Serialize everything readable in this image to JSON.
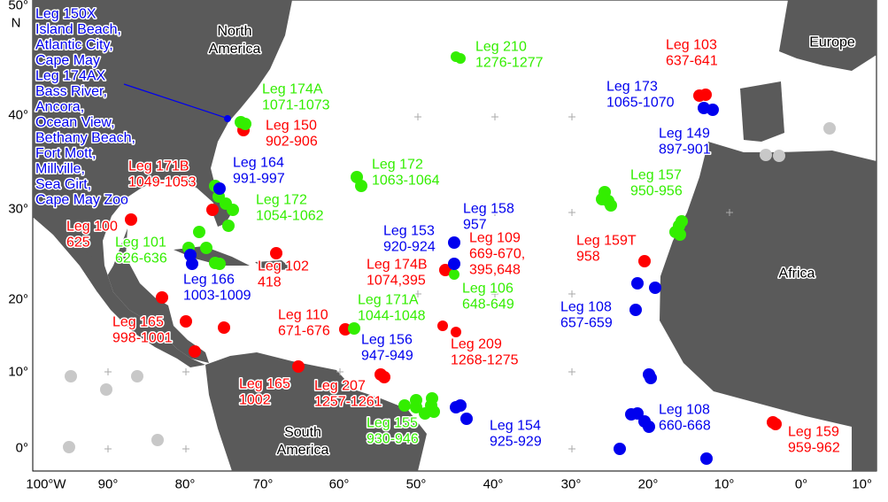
{
  "regions": [
    "North America",
    "Europe",
    "Africa",
    "South America"
  ],
  "axes": {
    "x_labels": [
      "100°W",
      "90°",
      "80°",
      "70°",
      "60°",
      "50°",
      "40°",
      "30°",
      "20°",
      "10°",
      "0°",
      "10°"
    ],
    "y_labels": [
      "50°",
      "40°",
      "30°",
      "20°",
      "10°",
      "0°"
    ],
    "y_unit": "N"
  },
  "legs": [
    {
      "color": "#0000ee",
      "lines": [
        "Leg 150X",
        "Island Beach,",
        "Atlantic City,",
        "Cape May",
        "Leg 174AX",
        "Bass River,",
        "Ancora,",
        "Ocean View,",
        "Bethany Beach,",
        "Fort Mott,",
        "Millville,",
        "Sea Girt,",
        "Cape May Zoo"
      ]
    },
    {
      "color": "#33ee00",
      "lines": [
        "Leg 210",
        "1276-1277"
      ]
    },
    {
      "color": "#ff0000",
      "lines": [
        "Leg 103",
        "637-641"
      ]
    },
    {
      "color": "#33ee00",
      "lines": [
        "Leg 174A",
        "1071-1073"
      ]
    },
    {
      "color": "#0000ee",
      "lines": [
        "Leg 173",
        "1065-1070"
      ]
    },
    {
      "color": "#ff0000",
      "lines": [
        "Leg 150",
        "902-906"
      ]
    },
    {
      "color": "#0000ee",
      "lines": [
        "Leg 149",
        "897-901"
      ]
    },
    {
      "color": "#ff0000",
      "lines": [
        "Leg 171B",
        "1049-1053"
      ]
    },
    {
      "color": "#0000ee",
      "lines": [
        "Leg 164",
        "991-997"
      ]
    },
    {
      "color": "#33ee00",
      "lines": [
        "Leg 172",
        "1063-1064"
      ]
    },
    {
      "color": "#33ee00",
      "lines": [
        "Leg 157",
        "950-956"
      ]
    },
    {
      "color": "#33ee00",
      "lines": [
        "Leg 172",
        "1054-1062"
      ]
    },
    {
      "color": "#0000ee",
      "lines": [
        "Leg 158",
        "957"
      ]
    },
    {
      "color": "#ff0000",
      "lines": [
        "Leg 100",
        "625"
      ]
    },
    {
      "color": "#0000ee",
      "lines": [
        "Leg 153",
        "920-924"
      ]
    },
    {
      "color": "#ff0000",
      "lines": [
        "Leg 109",
        "669-670,",
        "395,648"
      ]
    },
    {
      "color": "#ff0000",
      "lines": [
        "Leg 159T",
        "958"
      ]
    },
    {
      "color": "#33ee00",
      "lines": [
        "Leg 101",
        "626-636"
      ]
    },
    {
      "color": "#ff0000",
      "lines": [
        "Leg 102",
        "418"
      ]
    },
    {
      "color": "#ff0000",
      "lines": [
        "Leg 174B",
        "1074,395"
      ]
    },
    {
      "color": "#0000ee",
      "lines": [
        "Leg 166",
        "1003-1009"
      ]
    },
    {
      "color": "#33ee00",
      "lines": [
        "Leg 106",
        "648-649"
      ]
    },
    {
      "color": "#33ee00",
      "lines": [
        "Leg 171A",
        "1044-1048"
      ]
    },
    {
      "color": "#0000ee",
      "lines": [
        "Leg 108",
        "657-659"
      ]
    },
    {
      "color": "#ff0000",
      "lines": [
        "Leg 110",
        "671-676"
      ]
    },
    {
      "color": "#ff0000",
      "lines": [
        "Leg 165",
        "998-1001"
      ]
    },
    {
      "color": "#0000ee",
      "lines": [
        "Leg 156",
        "947-949"
      ]
    },
    {
      "color": "#ff0000",
      "lines": [
        "Leg 209",
        "1268-1275"
      ]
    },
    {
      "color": "#ff0000",
      "lines": [
        "Leg 165",
        "1002"
      ]
    },
    {
      "color": "#ff0000",
      "lines": [
        "Leg 207",
        "1257-1261"
      ]
    },
    {
      "color": "#0000ee",
      "lines": [
        "Leg 154",
        "925-929"
      ]
    },
    {
      "color": "#0000ee",
      "lines": [
        "Leg 108",
        "660-668"
      ]
    },
    {
      "color": "#33ee00",
      "lines": [
        "Leg 155",
        "930-946"
      ]
    },
    {
      "color": "#ff0000",
      "lines": [
        "Leg 159",
        "959-962"
      ]
    }
  ]
}
